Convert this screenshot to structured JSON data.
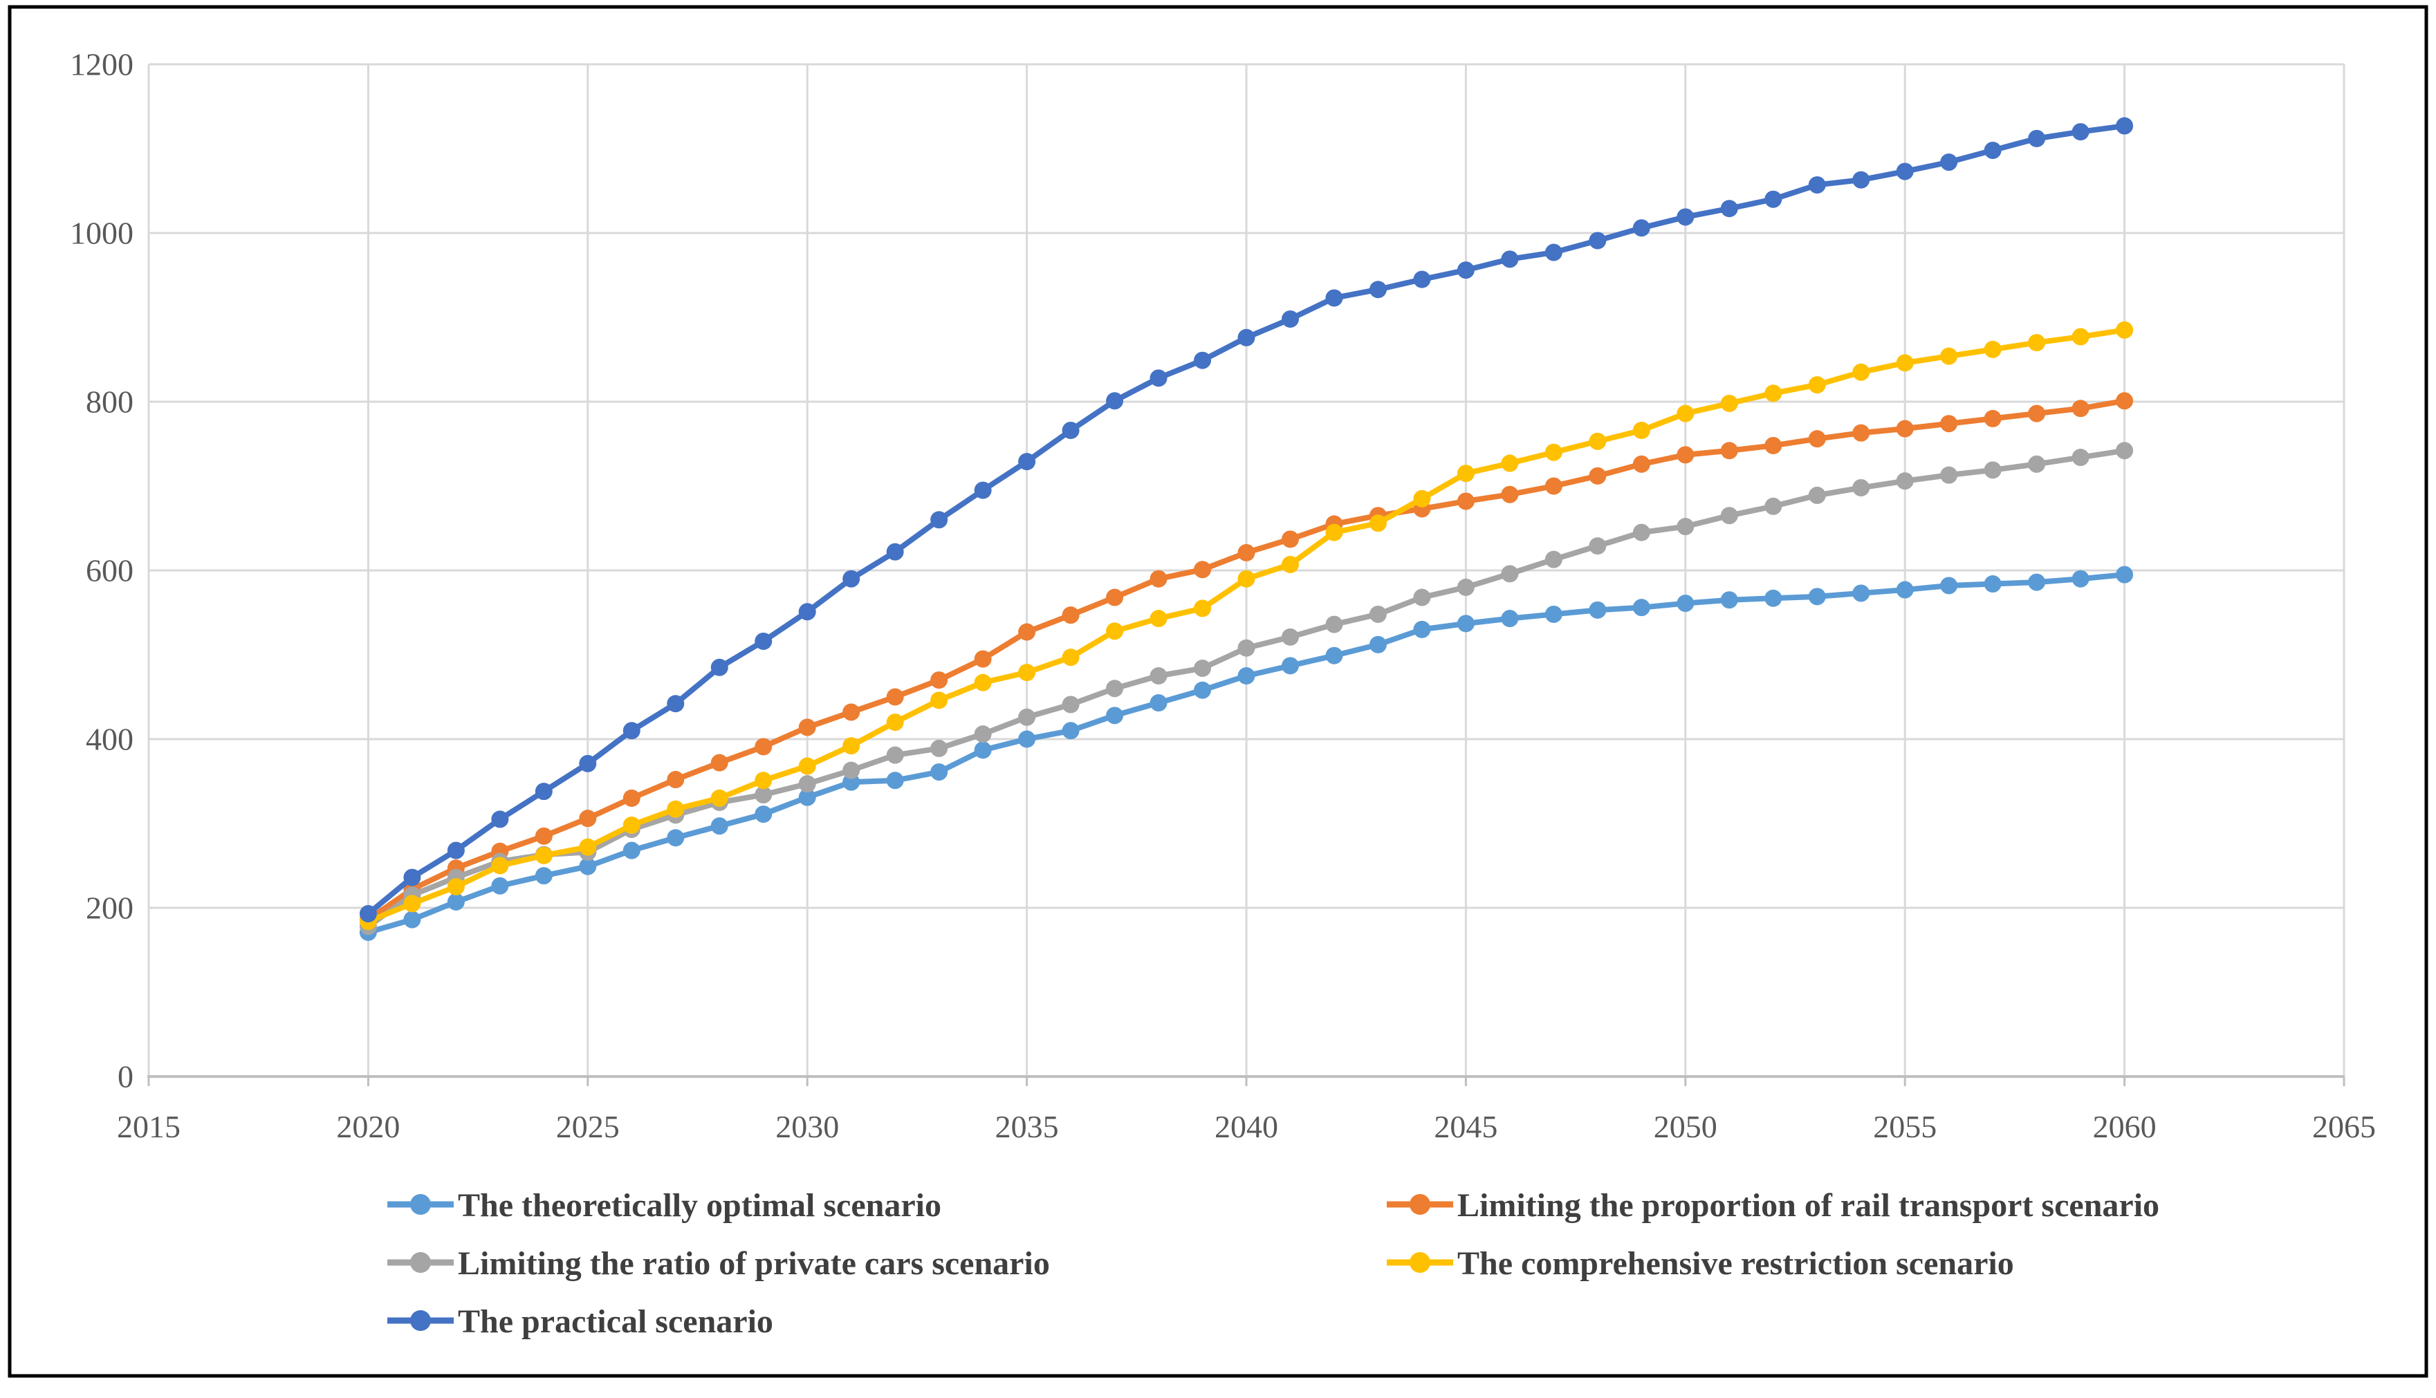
{
  "figure": {
    "background_color": "#FFFFFF",
    "frame_border_color": "#000000"
  },
  "style": {
    "gridline_color": "#D9D9D9",
    "axis_line_color": "#BFBFBF",
    "axis_text_color": "#595959",
    "legend_text_color": "#3F3F3F"
  },
  "chart_data": {
    "type": "line",
    "title": "",
    "xlabel": "",
    "ylabel": "",
    "grid": true,
    "legend_position": "bottom-left two-column",
    "marker": "circle",
    "x_axis": {
      "min": 2015,
      "max": 2065,
      "tick_step": 5,
      "ticks": [
        2015,
        2020,
        2025,
        2030,
        2035,
        2040,
        2045,
        2050,
        2055,
        2060,
        2065
      ]
    },
    "y_axis": {
      "min": 0,
      "max": 1200,
      "tick_step": 200,
      "ticks": [
        0,
        200,
        400,
        600,
        800,
        1000,
        1200
      ]
    },
    "x": [
      2020,
      2021,
      2022,
      2023,
      2024,
      2025,
      2026,
      2027,
      2028,
      2029,
      2030,
      2031,
      2032,
      2033,
      2034,
      2035,
      2036,
      2037,
      2038,
      2039,
      2040,
      2041,
      2042,
      2043,
      2044,
      2045,
      2046,
      2047,
      2048,
      2049,
      2050,
      2051,
      2052,
      2053,
      2054,
      2055,
      2056,
      2057,
      2058,
      2059,
      2060
    ],
    "series": [
      {
        "name": "The theoretically optimal scenario",
        "color": "#5B9BD5",
        "values": [
          171,
          186,
          207,
          226,
          238,
          249,
          268,
          283,
          297,
          311,
          331,
          349,
          351,
          361,
          387,
          400,
          410,
          428,
          443,
          458,
          475,
          487,
          499,
          512,
          530,
          537,
          543,
          548,
          553,
          556,
          561,
          565,
          567,
          569,
          573,
          577,
          582,
          584,
          586,
          590,
          595
        ]
      },
      {
        "name": "Limiting the proportion of rail transport  scenario",
        "color": "#ED7D31",
        "values": [
          186,
          222,
          247,
          267,
          285,
          306,
          330,
          352,
          372,
          391,
          414,
          432,
          450,
          470,
          495,
          527,
          547,
          568,
          590,
          601,
          621,
          637,
          655,
          665,
          673,
          682,
          690,
          700,
          712,
          726,
          737,
          742,
          748,
          756,
          763,
          768,
          774,
          780,
          786,
          792,
          801
        ]
      },
      {
        "name": "Limiting the ratio of private cars scenario",
        "color": "#A5A5A5",
        "values": [
          178,
          215,
          236,
          255,
          263,
          266,
          293,
          310,
          325,
          334,
          347,
          363,
          381,
          389,
          406,
          426,
          441,
          460,
          475,
          484,
          508,
          521,
          536,
          548,
          568,
          580,
          596,
          613,
          629,
          645,
          652,
          665,
          676,
          689,
          698,
          706,
          713,
          719,
          726,
          734,
          742
        ]
      },
      {
        "name": "The comprehensive restriction scenario",
        "color": "#FFC000",
        "values": [
          184,
          205,
          225,
          250,
          262,
          272,
          298,
          317,
          330,
          351,
          368,
          392,
          420,
          446,
          467,
          479,
          497,
          528,
          543,
          555,
          590,
          607,
          645,
          656,
          685,
          715,
          727,
          740,
          753,
          766,
          786,
          798,
          810,
          820,
          835,
          846,
          854,
          862,
          870,
          877,
          885
        ]
      },
      {
        "name": "The practical scenario",
        "color": "#4472C4",
        "values": [
          193,
          236,
          268,
          305,
          338,
          371,
          410,
          442,
          485,
          516,
          551,
          590,
          622,
          660,
          695,
          729,
          766,
          801,
          828,
          849,
          876,
          898,
          923,
          933,
          945,
          956,
          969,
          977,
          991,
          1006,
          1019,
          1029,
          1040,
          1057,
          1063,
          1073,
          1084,
          1098,
          1112,
          1120,
          1127
        ]
      }
    ]
  },
  "legend": {
    "rows": [
      [
        0,
        1
      ],
      [
        2,
        3
      ],
      [
        4
      ]
    ]
  }
}
